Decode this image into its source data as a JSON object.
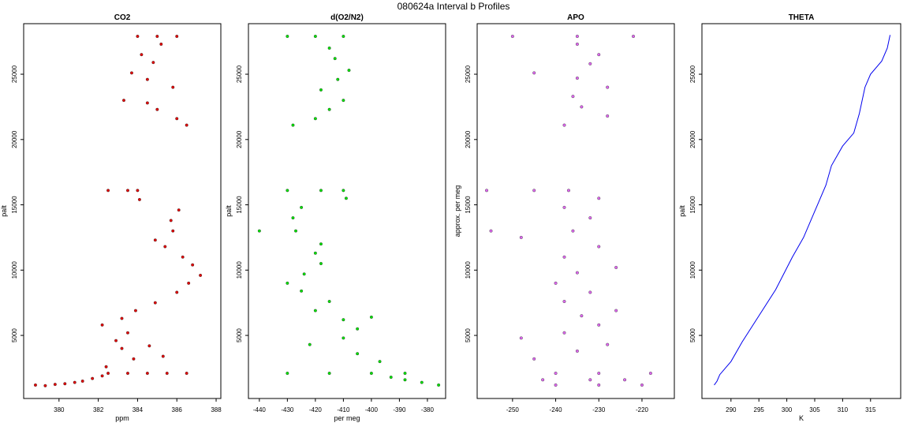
{
  "title": "080624a   Interval b Profiles",
  "chart_data": [
    {
      "type": "scatter",
      "title": "CO2",
      "x_label": "ppm",
      "y_label": "palt",
      "xlim": [
        378.2,
        388.24
      ],
      "xticks": [
        380,
        382,
        384,
        386,
        388
      ],
      "ylim": [
        170,
        28870
      ],
      "yticks": [
        5000,
        10000,
        15000,
        20000,
        25000
      ],
      "series": [
        {
          "color": "#e00000",
          "x": [
            378.8,
            379.3,
            379.8,
            380.3,
            380.8,
            381.2,
            381.7,
            382.2,
            382.5,
            383.5,
            384.5,
            385.5,
            386.5,
            382.4,
            383.8,
            385.3,
            383.2,
            384.6,
            382.9,
            383.5,
            382.2,
            383.2,
            383.9,
            384.9,
            386.0,
            386.6,
            387.2,
            386.8,
            386.3,
            385.4,
            384.9,
            385.8,
            385.7,
            386.1,
            384.1,
            382.5,
            383.5,
            384.0,
            386.5,
            386.0,
            385.0,
            384.5,
            383.3,
            385.8,
            384.5,
            383.7,
            384.8,
            384.2,
            385.2,
            384.0,
            385.0,
            386.0
          ],
          "values": [
            1200,
            1150,
            1250,
            1300,
            1400,
            1500,
            1700,
            1900,
            2100,
            2100,
            2100,
            2100,
            2100,
            2600,
            3200,
            3400,
            4000,
            4200,
            4600,
            5200,
            5800,
            6300,
            6900,
            7500,
            8300,
            9000,
            9600,
            10400,
            11000,
            11800,
            12300,
            13000,
            13800,
            14600,
            15400,
            16100,
            16100,
            16100,
            21100,
            21600,
            22300,
            22800,
            23000,
            24000,
            24600,
            25100,
            25900,
            26500,
            27300,
            27900,
            27900,
            27900
          ]
        }
      ]
    },
    {
      "type": "scatter",
      "title": "d(O2/N2)",
      "x_label": "per meg",
      "y_label": "palt",
      "xlim": [
        -443.9,
        -373.5
      ],
      "xticks": [
        -440,
        -430,
        -420,
        -410,
        -400,
        -390,
        -380
      ],
      "ylim": [
        170,
        28870
      ],
      "yticks": [
        5000,
        10000,
        15000,
        20000,
        25000
      ],
      "series": [
        {
          "color": "#00e000",
          "x": [
            -376,
            -382,
            -388,
            -393,
            -430,
            -415,
            -400,
            -388,
            -397,
            -405,
            -422,
            -410,
            -405,
            -410,
            -400,
            -420,
            -415,
            -425,
            -430,
            -424,
            -418,
            -420,
            -418,
            -427,
            -440,
            -428,
            -425,
            -430,
            -418,
            -410,
            -409,
            -428,
            -420,
            -415,
            -410,
            -418,
            -412,
            -408,
            -413,
            -415,
            -430,
            -420,
            -410
          ],
          "values": [
            1200,
            1400,
            1600,
            1800,
            2100,
            2100,
            2100,
            2100,
            3000,
            3600,
            4300,
            4800,
            5500,
            6200,
            6400,
            6900,
            7600,
            8400,
            9000,
            9700,
            10500,
            11300,
            12000,
            13000,
            13000,
            14000,
            14800,
            16100,
            16100,
            16100,
            15500,
            21100,
            21600,
            22300,
            23000,
            23800,
            24600,
            25300,
            26200,
            27000,
            27900,
            27900,
            27900
          ]
        }
      ]
    },
    {
      "type": "scatter",
      "title": "APO",
      "y_label": "approx. per meg",
      "xlim": [
        -258.2,
        -212.5
      ],
      "xticks": [
        -250,
        -240,
        -230,
        -220
      ],
      "ylim": [
        170,
        28870
      ],
      "yticks": [
        5000,
        10000,
        15000,
        20000,
        25000
      ],
      "series": [
        {
          "color": "#dd66ee",
          "x": [
            -240,
            -230,
            -220,
            -243,
            -232,
            -224,
            -240,
            -230,
            -218,
            -245,
            -235,
            -228,
            -248,
            -238,
            -230,
            -234,
            -226,
            -238,
            -232,
            -240,
            -235,
            -226,
            -238,
            -230,
            -248,
            -236,
            -255,
            -232,
            -238,
            -256,
            -245,
            -237,
            -230,
            -238,
            -228,
            -234,
            -236,
            -228,
            -235,
            -245,
            -232,
            -230,
            -235,
            -250,
            -235,
            -222
          ],
          "values": [
            1200,
            1200,
            1200,
            1600,
            1600,
            1600,
            2100,
            2100,
            2100,
            3200,
            3800,
            4300,
            4800,
            5200,
            5800,
            6500,
            6900,
            7600,
            8300,
            9000,
            9800,
            10200,
            11000,
            11800,
            12500,
            13000,
            13000,
            14000,
            14800,
            16100,
            16100,
            16100,
            15500,
            21100,
            21800,
            22500,
            23300,
            24000,
            24700,
            25100,
            25800,
            26500,
            27300,
            27900,
            27900,
            27900
          ]
        }
      ]
    },
    {
      "type": "line",
      "title": "THETA",
      "x_label": "K",
      "y_label": "palt",
      "xlim": [
        284.8,
        320.4
      ],
      "xticks": [
        290,
        295,
        300,
        305,
        310,
        315
      ],
      "ylim": [
        170,
        28870
      ],
      "yticks": [
        5000,
        10000,
        15000,
        20000,
        25000
      ],
      "series": [
        {
          "color": "#0000ee",
          "x": [
            287,
            287.5,
            288,
            290,
            292,
            295,
            298,
            301,
            303,
            305,
            307,
            308,
            310,
            312,
            313,
            314,
            315,
            317,
            318,
            318.5
          ],
          "values": [
            1200,
            1500,
            2000,
            3000,
            4500,
            6500,
            8500,
            11000,
            12500,
            14500,
            16500,
            18000,
            19500,
            20500,
            22000,
            24000,
            25000,
            26000,
            27000,
            28000
          ]
        }
      ]
    }
  ]
}
